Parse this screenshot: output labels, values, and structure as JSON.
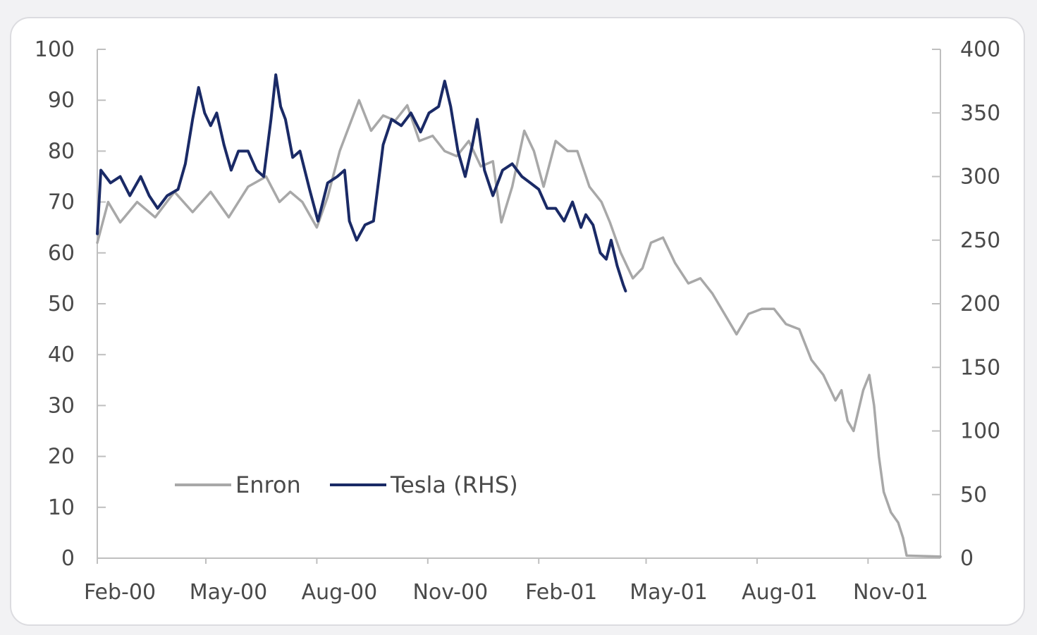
{
  "chart_data": {
    "type": "line",
    "title": "",
    "xlabel": "",
    "ylabel": "",
    "x_tick_labels": [
      "Feb-00",
      "May-00",
      "Aug-00",
      "Nov-00",
      "Feb-01",
      "May-01",
      "Aug-01",
      "Nov-01"
    ],
    "x_tick_dates": [
      "2000-02",
      "2000-05",
      "2000-08",
      "2000-11",
      "2001-02",
      "2001-05",
      "2001-08",
      "2001-11"
    ],
    "x_range": [
      "2000-02",
      "2001-12"
    ],
    "y_left": {
      "min": 0,
      "max": 100,
      "ticks": [
        0,
        10,
        20,
        30,
        40,
        50,
        60,
        70,
        80,
        90,
        100
      ]
    },
    "y_right": {
      "min": 0,
      "max": 400,
      "ticks": [
        0,
        50,
        100,
        150,
        200,
        250,
        300,
        350,
        400
      ]
    },
    "grid": false,
    "legend_position": "bottom-left",
    "series": [
      {
        "name": "Enron",
        "axis": "left",
        "color": "#a8a8a8",
        "points": [
          [
            "2000-02-01",
            62
          ],
          [
            "2000-02-10",
            70
          ],
          [
            "2000-02-20",
            66
          ],
          [
            "2000-03-05",
            70
          ],
          [
            "2000-03-20",
            67
          ],
          [
            "2000-04-05",
            72
          ],
          [
            "2000-04-20",
            68
          ],
          [
            "2000-05-05",
            72
          ],
          [
            "2000-05-20",
            67
          ],
          [
            "2000-06-05",
            73
          ],
          [
            "2000-06-20",
            75
          ],
          [
            "2000-07-01",
            70
          ],
          [
            "2000-07-10",
            72
          ],
          [
            "2000-07-20",
            70
          ],
          [
            "2000-08-01",
            65
          ],
          [
            "2000-08-10",
            71
          ],
          [
            "2000-08-20",
            80
          ],
          [
            "2000-08-28",
            85
          ],
          [
            "2000-09-05",
            90
          ],
          [
            "2000-09-15",
            84
          ],
          [
            "2000-09-25",
            87
          ],
          [
            "2000-10-05",
            86
          ],
          [
            "2000-10-15",
            89
          ],
          [
            "2000-10-25",
            82
          ],
          [
            "2000-11-05",
            83
          ],
          [
            "2000-11-15",
            80
          ],
          [
            "2000-11-25",
            79
          ],
          [
            "2000-12-05",
            82
          ],
          [
            "2000-12-15",
            77
          ],
          [
            "2000-12-25",
            78
          ],
          [
            "2001-01-01",
            66
          ],
          [
            "2001-01-10",
            73
          ],
          [
            "2001-01-20",
            84
          ],
          [
            "2001-01-28",
            80
          ],
          [
            "2001-02-05",
            73
          ],
          [
            "2001-02-15",
            82
          ],
          [
            "2001-02-25",
            80
          ],
          [
            "2001-03-05",
            80
          ],
          [
            "2001-03-15",
            73
          ],
          [
            "2001-03-25",
            70
          ],
          [
            "2001-04-01",
            66
          ],
          [
            "2001-04-10",
            60
          ],
          [
            "2001-04-20",
            55
          ],
          [
            "2001-04-28",
            57
          ],
          [
            "2001-05-05",
            62
          ],
          [
            "2001-05-15",
            63
          ],
          [
            "2001-05-25",
            58
          ],
          [
            "2001-06-05",
            54
          ],
          [
            "2001-06-15",
            55
          ],
          [
            "2001-06-25",
            52
          ],
          [
            "2001-07-05",
            48
          ],
          [
            "2001-07-15",
            44
          ],
          [
            "2001-07-25",
            48
          ],
          [
            "2001-08-05",
            49
          ],
          [
            "2001-08-15",
            49
          ],
          [
            "2001-08-25",
            46
          ],
          [
            "2001-09-05",
            45
          ],
          [
            "2001-09-15",
            39
          ],
          [
            "2001-09-25",
            36
          ],
          [
            "2001-10-05",
            31
          ],
          [
            "2001-10-10",
            33
          ],
          [
            "2001-10-15",
            27
          ],
          [
            "2001-10-20",
            25
          ],
          [
            "2001-10-28",
            33
          ],
          [
            "2001-11-02",
            36
          ],
          [
            "2001-11-06",
            30
          ],
          [
            "2001-11-10",
            20
          ],
          [
            "2001-11-14",
            13
          ],
          [
            "2001-11-20",
            9
          ],
          [
            "2001-11-26",
            7
          ],
          [
            "2001-11-30",
            4
          ],
          [
            "2001-12-03",
            0.5
          ],
          [
            "2001-12-31",
            0.3
          ]
        ]
      },
      {
        "name": "Tesla (RHS)",
        "axis": "right",
        "color": "#1a2a66",
        "points": [
          [
            "2000-02-01",
            255
          ],
          [
            "2000-02-04",
            305
          ],
          [
            "2000-02-12",
            295
          ],
          [
            "2000-02-20",
            300
          ],
          [
            "2000-02-28",
            285
          ],
          [
            "2000-03-08",
            300
          ],
          [
            "2000-03-15",
            285
          ],
          [
            "2000-03-22",
            275
          ],
          [
            "2000-03-30",
            285
          ],
          [
            "2000-04-08",
            290
          ],
          [
            "2000-04-14",
            310
          ],
          [
            "2000-04-20",
            345
          ],
          [
            "2000-04-25",
            370
          ],
          [
            "2000-04-30",
            350
          ],
          [
            "2000-05-05",
            340
          ],
          [
            "2000-05-10",
            350
          ],
          [
            "2000-05-16",
            325
          ],
          [
            "2000-05-22",
            305
          ],
          [
            "2000-05-28",
            320
          ],
          [
            "2000-06-05",
            320
          ],
          [
            "2000-06-12",
            305
          ],
          [
            "2000-06-18",
            300
          ],
          [
            "2000-06-24",
            345
          ],
          [
            "2000-06-28",
            380
          ],
          [
            "2000-07-02",
            355
          ],
          [
            "2000-07-06",
            345
          ],
          [
            "2000-07-12",
            315
          ],
          [
            "2000-07-18",
            320
          ],
          [
            "2000-07-26",
            290
          ],
          [
            "2000-08-02",
            265
          ],
          [
            "2000-08-10",
            295
          ],
          [
            "2000-08-18",
            300
          ],
          [
            "2000-08-24",
            305
          ],
          [
            "2000-08-28",
            265
          ],
          [
            "2000-09-03",
            250
          ],
          [
            "2000-09-10",
            262
          ],
          [
            "2000-09-17",
            265
          ],
          [
            "2000-09-25",
            325
          ],
          [
            "2000-10-02",
            345
          ],
          [
            "2000-10-10",
            340
          ],
          [
            "2000-10-18",
            350
          ],
          [
            "2000-10-26",
            335
          ],
          [
            "2000-11-02",
            350
          ],
          [
            "2000-11-10",
            355
          ],
          [
            "2000-11-15",
            375
          ],
          [
            "2000-11-20",
            355
          ],
          [
            "2000-11-26",
            320
          ],
          [
            "2000-12-02",
            300
          ],
          [
            "2000-12-08",
            325
          ],
          [
            "2000-12-12",
            345
          ],
          [
            "2000-12-18",
            305
          ],
          [
            "2000-12-25",
            285
          ],
          [
            "2001-01-02",
            305
          ],
          [
            "2001-01-10",
            310
          ],
          [
            "2001-01-18",
            300
          ],
          [
            "2001-01-25",
            295
          ],
          [
            "2001-02-01",
            290
          ],
          [
            "2001-02-08",
            275
          ],
          [
            "2001-02-15",
            275
          ],
          [
            "2001-02-22",
            265
          ],
          [
            "2001-03-01",
            280
          ],
          [
            "2001-03-08",
            260
          ],
          [
            "2001-03-12",
            270
          ],
          [
            "2001-03-18",
            262
          ],
          [
            "2001-03-24",
            240
          ],
          [
            "2001-03-29",
            235
          ],
          [
            "2001-04-02",
            250
          ],
          [
            "2001-04-07",
            230
          ],
          [
            "2001-04-12",
            215
          ],
          [
            "2001-04-14",
            210
          ]
        ]
      }
    ]
  }
}
